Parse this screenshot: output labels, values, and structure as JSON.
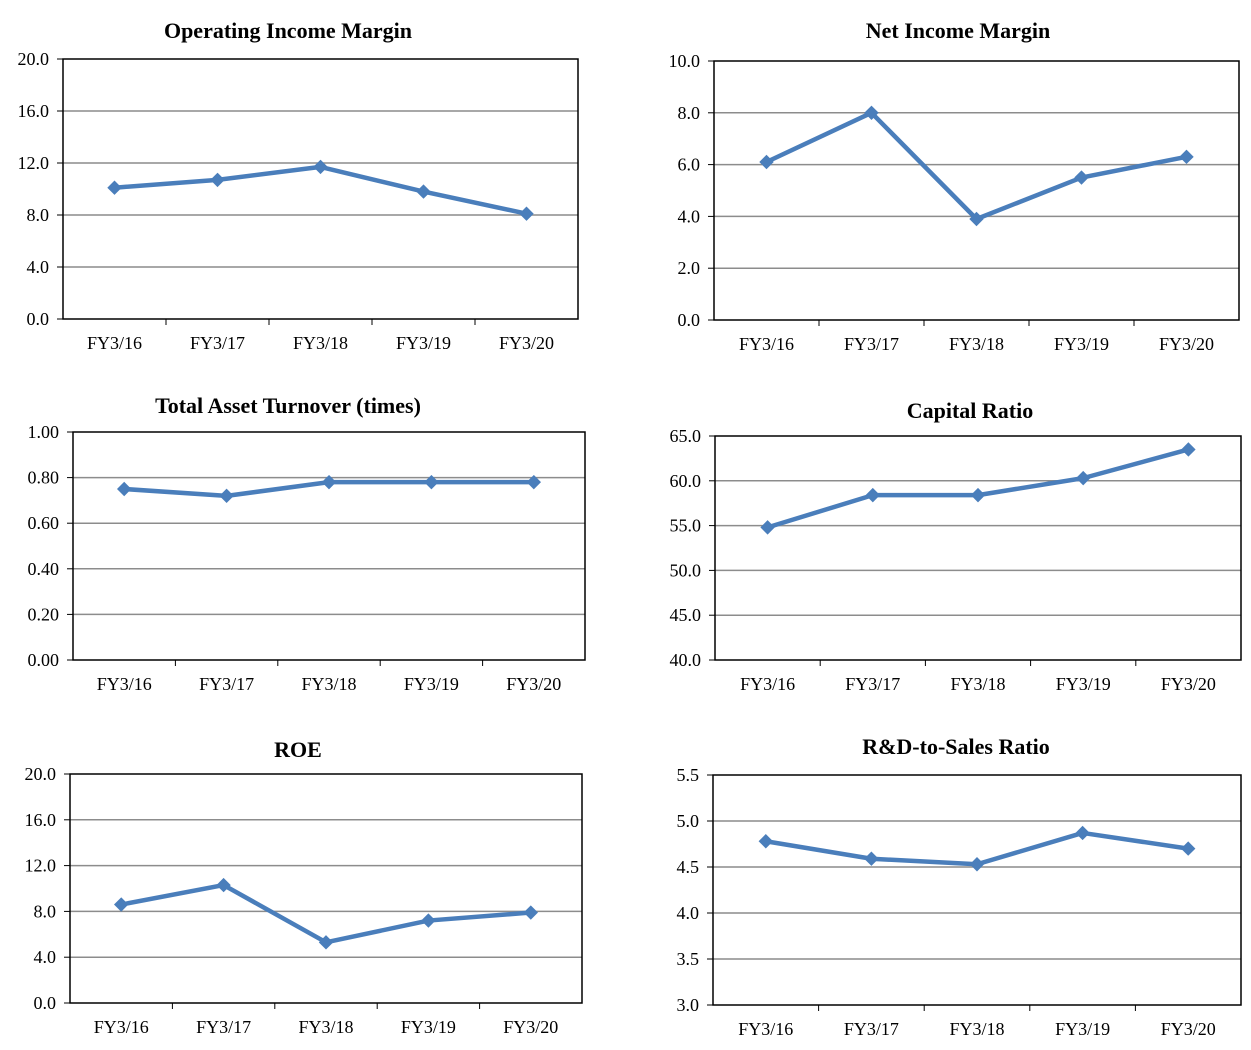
{
  "chart_data": [
    {
      "type": "line",
      "title": "Operating Income Margin",
      "categories": [
        "FY3/16",
        "FY3/17",
        "FY3/18",
        "FY3/19",
        "FY3/20"
      ],
      "values": [
        10.1,
        10.7,
        11.7,
        9.8,
        8.1
      ],
      "yticks": [
        "0.0",
        "4.0",
        "8.0",
        "12.0",
        "16.0",
        "20.0"
      ],
      "ylim": [
        0,
        20
      ],
      "grid": true,
      "line_color": "#4A7EBB"
    },
    {
      "type": "line",
      "title": "Net Income Margin",
      "categories": [
        "FY3/16",
        "FY3/17",
        "FY3/18",
        "FY3/19",
        "FY3/20"
      ],
      "values": [
        6.1,
        8.0,
        3.9,
        5.5,
        6.3
      ],
      "yticks": [
        "0.0",
        "2.0",
        "4.0",
        "6.0",
        "8.0",
        "10.0"
      ],
      "ylim": [
        0,
        10
      ],
      "grid": true,
      "line_color": "#4A7EBB"
    },
    {
      "type": "line",
      "title": "Total Asset Turnover (times)",
      "categories": [
        "FY3/16",
        "FY3/17",
        "FY3/18",
        "FY3/19",
        "FY3/20"
      ],
      "values": [
        0.75,
        0.72,
        0.78,
        0.78,
        0.78
      ],
      "yticks": [
        "0.00",
        "0.20",
        "0.40",
        "0.60",
        "0.80",
        "1.00"
      ],
      "ylim": [
        0,
        1
      ],
      "grid": true,
      "line_color": "#4A7EBB"
    },
    {
      "type": "line",
      "title": "Capital Ratio",
      "categories": [
        "FY3/16",
        "FY3/17",
        "FY3/18",
        "FY3/19",
        "FY3/20"
      ],
      "values": [
        54.8,
        58.4,
        58.4,
        60.3,
        63.5
      ],
      "yticks": [
        "40.0",
        "45.0",
        "50.0",
        "55.0",
        "60.0",
        "65.0"
      ],
      "ylim": [
        40,
        65
      ],
      "grid": true,
      "line_color": "#4A7EBB"
    },
    {
      "type": "line",
      "title": "ROE",
      "categories": [
        "FY3/16",
        "FY3/17",
        "FY3/18",
        "FY3/19",
        "FY3/20"
      ],
      "values": [
        8.6,
        10.3,
        5.3,
        7.2,
        7.9
      ],
      "yticks": [
        "0.0",
        "4.0",
        "8.0",
        "12.0",
        "16.0",
        "20.0"
      ],
      "ylim": [
        0,
        20
      ],
      "grid": true,
      "line_color": "#4A7EBB"
    },
    {
      "type": "line",
      "title": "R&D-to-Sales Ratio",
      "categories": [
        "FY3/16",
        "FY3/17",
        "FY3/18",
        "FY3/19",
        "FY3/20"
      ],
      "values": [
        4.78,
        4.59,
        4.53,
        4.87,
        4.7
      ],
      "yticks": [
        "3.0",
        "3.5",
        "4.0",
        "4.5",
        "5.0",
        "5.5"
      ],
      "ylim": [
        3,
        5.5
      ],
      "grid": true,
      "line_color": "#4A7EBB"
    }
  ]
}
